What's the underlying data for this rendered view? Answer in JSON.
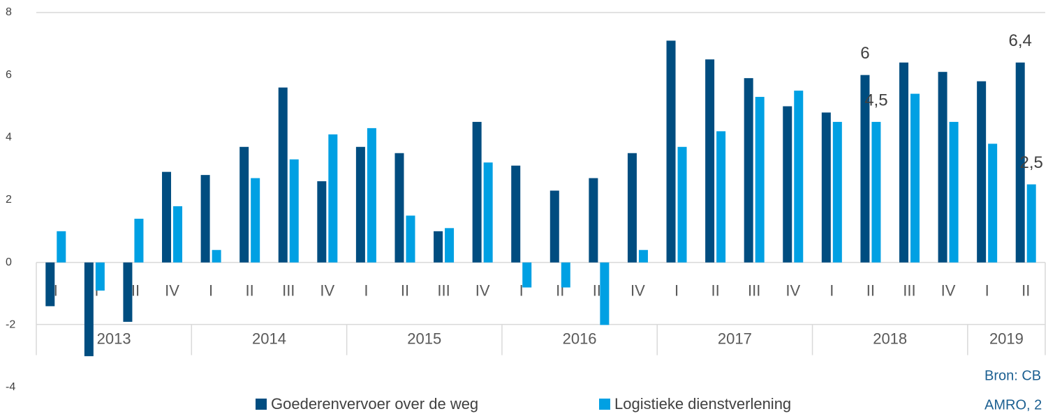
{
  "chart_data": {
    "type": "bar",
    "categories": [
      "I",
      "II",
      "III",
      "IV",
      "I",
      "II",
      "III",
      "IV",
      "I",
      "II",
      "III",
      "IV",
      "I",
      "II",
      "III",
      "IV",
      "I",
      "II",
      "III",
      "IV",
      "I",
      "II",
      "III",
      "IV",
      "I",
      "II"
    ],
    "groups": [
      {
        "label": "2013",
        "span": 4
      },
      {
        "label": "2014",
        "span": 4
      },
      {
        "label": "2015",
        "span": 4
      },
      {
        "label": "2016",
        "span": 4
      },
      {
        "label": "2017",
        "span": 4
      },
      {
        "label": "2018",
        "span": 4
      },
      {
        "label": "2019",
        "span": 2
      }
    ],
    "series": [
      {
        "name": "Goederenvervoer over de weg",
        "color": "#004d80",
        "values": [
          -1.4,
          -3.0,
          -1.9,
          2.9,
          2.8,
          3.7,
          5.6,
          2.6,
          3.7,
          3.5,
          1.0,
          4.5,
          3.1,
          2.3,
          2.7,
          3.5,
          7.1,
          6.5,
          5.9,
          5.0,
          4.8,
          6.0,
          6.4,
          6.1,
          5.8,
          6.4
        ],
        "value_labels": [
          null,
          null,
          null,
          null,
          null,
          null,
          null,
          null,
          null,
          null,
          null,
          null,
          null,
          null,
          null,
          null,
          null,
          null,
          null,
          null,
          null,
          "6",
          null,
          null,
          null,
          "6,4"
        ]
      },
      {
        "name": "Logistieke dienstverlening",
        "color": "#00a0e3",
        "values": [
          1.0,
          -0.9,
          1.4,
          1.8,
          0.4,
          2.7,
          3.3,
          4.1,
          4.3,
          1.5,
          1.1,
          3.2,
          -0.8,
          -0.8,
          -2.0,
          0.4,
          3.7,
          4.2,
          5.3,
          5.5,
          4.5,
          4.5,
          5.4,
          4.5,
          3.8,
          2.5
        ],
        "value_labels": [
          null,
          null,
          null,
          null,
          null,
          null,
          null,
          null,
          null,
          null,
          null,
          null,
          null,
          null,
          null,
          null,
          null,
          null,
          null,
          null,
          null,
          "4,5",
          null,
          null,
          null,
          "2,5"
        ]
      }
    ],
    "ylim": [
      -4,
      8
    ],
    "yticks": [
      8,
      6,
      4,
      2,
      0,
      -2,
      -4
    ],
    "source": [
      "Bron: CB",
      "AMRO, 2"
    ]
  }
}
